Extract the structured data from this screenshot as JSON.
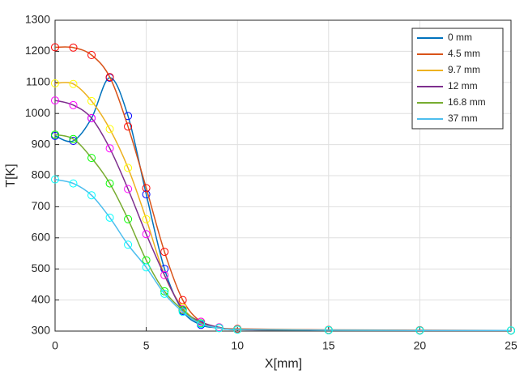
{
  "chart_data": {
    "type": "line",
    "xlabel": "X[mm]",
    "ylabel": "T[K]",
    "x": [
      0,
      1,
      2,
      3,
      4,
      5,
      6,
      7,
      8,
      9,
      10,
      15,
      20,
      25
    ],
    "series": [
      {
        "name": "0 mm",
        "color": "#0072BD",
        "marker_color": "#0000FF",
        "values": [
          928,
          912,
          985,
          1115,
          992,
          740,
          500,
          365,
          320,
          310,
          305,
          303,
          302,
          302
        ]
      },
      {
        "name": "4.5 mm",
        "color": "#D95319",
        "marker_color": "#FF0000",
        "values": [
          1213,
          1212,
          1188,
          1117,
          958,
          760,
          555,
          400,
          330,
          312,
          307,
          304,
          303,
          302
        ]
      },
      {
        "name": "9.7 mm",
        "color": "#EDB120",
        "marker_color": "#FFFF00",
        "values": [
          1097,
          1095,
          1040,
          950,
          825,
          660,
          480,
          375,
          325,
          310,
          305,
          303,
          302,
          302
        ]
      },
      {
        "name": "12 mm",
        "color": "#7E2F8E",
        "marker_color": "#FF00FF",
        "values": [
          1042,
          1027,
          985,
          888,
          757,
          612,
          480,
          370,
          330,
          312,
          305,
          303,
          302,
          302
        ]
      },
      {
        "name": "16.8 mm",
        "color": "#77AC30",
        "marker_color": "#00FF00",
        "values": [
          932,
          918,
          857,
          775,
          660,
          528,
          428,
          368,
          325,
          310,
          305,
          303,
          302,
          302
        ]
      },
      {
        "name": "37 mm",
        "color": "#4DBEEE",
        "marker_color": "#00FFFF",
        "values": [
          788,
          775,
          737,
          665,
          578,
          505,
          420,
          362,
          323,
          310,
          305,
          303,
          302,
          302
        ]
      }
    ],
    "xlim": [
      0,
      25
    ],
    "xticks": [
      0,
      5,
      10,
      15,
      20,
      25
    ],
    "ylim": [
      300,
      1300
    ],
    "yticks": [
      300,
      400,
      500,
      600,
      700,
      800,
      900,
      1000,
      1100,
      1200,
      1300
    ],
    "grid": true,
    "legend": "top-right"
  }
}
